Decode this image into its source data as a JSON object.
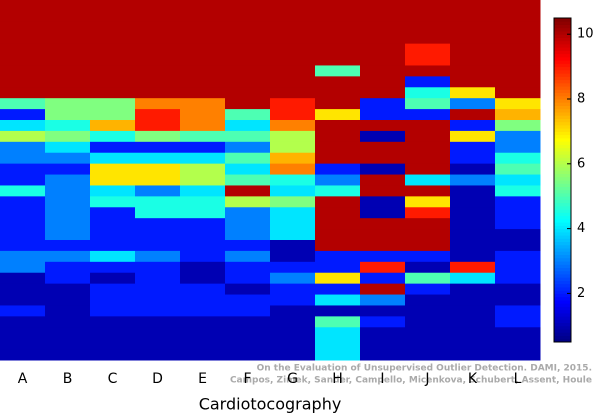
{
  "chart_data": {
    "type": "heatmap",
    "x_label": "Cardiotocography",
    "categories": [
      "A",
      "B",
      "C",
      "D",
      "E",
      "F",
      "G",
      "H",
      "I",
      "J",
      "K",
      "L"
    ],
    "colormap": "jet",
    "zlim": [
      0.5,
      10.5
    ],
    "zticks": [
      2,
      4,
      6,
      8,
      10
    ],
    "z": [
      [
        10,
        10,
        10,
        10,
        10,
        10,
        10,
        10,
        10,
        5,
        2,
        4,
        6,
        3,
        3,
        2,
        2,
        4.5,
        2,
        2,
        2,
        2,
        2,
        3,
        3,
        1,
        1,
        1,
        2,
        1,
        1,
        1,
        1
      ],
      [
        10,
        10,
        10,
        10,
        10,
        10,
        10,
        10,
        10,
        5.5,
        5.5,
        4.5,
        5.5,
        4,
        3,
        2,
        3,
        3,
        3,
        3,
        3,
        3,
        2,
        3,
        2,
        2,
        1,
        1,
        1,
        1,
        1,
        1,
        1
      ],
      [
        10,
        10,
        10,
        10,
        10,
        10,
        10,
        10,
        10,
        5.5,
        5.5,
        7.5,
        4.5,
        2,
        4,
        7,
        7,
        4,
        4.5,
        2,
        2,
        2,
        2,
        4,
        2,
        1,
        2,
        2,
        2,
        1,
        1,
        1,
        1
      ],
      [
        10,
        10,
        10,
        10,
        10,
        10,
        10,
        10,
        10,
        8,
        9,
        9,
        5.5,
        2,
        4,
        7,
        7,
        3,
        4.5,
        4.5,
        2,
        2,
        2,
        3,
        2,
        2,
        2,
        2,
        2,
        1,
        1,
        1,
        1
      ],
      [
        10,
        10,
        10,
        10,
        10,
        10,
        10,
        10,
        10,
        8,
        8,
        8,
        5,
        2,
        4,
        6,
        6,
        4,
        4.5,
        4.5,
        2,
        2,
        2,
        2,
        1,
        1,
        2,
        2,
        2,
        1,
        1,
        1,
        1
      ],
      [
        10,
        10,
        10,
        10,
        10,
        10,
        10,
        10,
        10,
        10,
        5,
        4,
        5,
        3,
        5,
        4,
        5,
        10,
        6,
        3,
        3,
        3,
        2,
        3,
        2,
        2,
        1,
        2,
        2,
        1,
        1,
        1,
        1
      ],
      [
        10,
        10,
        10,
        10,
        10,
        10,
        10,
        10,
        10,
        9,
        9,
        8,
        6,
        6,
        7.5,
        8,
        4.5,
        4,
        5.5,
        4,
        4,
        4,
        1,
        1,
        2,
        3,
        2,
        2,
        1,
        1,
        1,
        1,
        1
      ],
      [
        10,
        10,
        10,
        10,
        10,
        10,
        5,
        10,
        10,
        10,
        7,
        10,
        10,
        10,
        10,
        2,
        3,
        4.5,
        10,
        10,
        10,
        10,
        10,
        2,
        2,
        7,
        2,
        4,
        1,
        5,
        4,
        4,
        4
      ],
      [
        10,
        10,
        10,
        10,
        10,
        10,
        10,
        10,
        10,
        2,
        2,
        10,
        1,
        10,
        10,
        1,
        10,
        10,
        1,
        1,
        10,
        10,
        10,
        2,
        9,
        2,
        10,
        3,
        1,
        2,
        1,
        1,
        1
      ],
      [
        10,
        10,
        10,
        10,
        9,
        9,
        10,
        2,
        4.5,
        5,
        2,
        10,
        10,
        10,
        10,
        10,
        4,
        10,
        7,
        9,
        10,
        10,
        10,
        2,
        1,
        5,
        2,
        1,
        1,
        1,
        1,
        1,
        1
      ],
      [
        10,
        10,
        10,
        10,
        10,
        10,
        10,
        10,
        7,
        3,
        10,
        2,
        7,
        2,
        2,
        1,
        3,
        1,
        1,
        1,
        1,
        1,
        1,
        1,
        9,
        4,
        1,
        1,
        1,
        1,
        1,
        1,
        1
      ],
      [
        10,
        10,
        10,
        10,
        10,
        10,
        10,
        10,
        10,
        7,
        7.5,
        5.5,
        3,
        3,
        4.5,
        5,
        4,
        4.5,
        2,
        2,
        2,
        1,
        1,
        2,
        2,
        2,
        1,
        1,
        2,
        2,
        1,
        1,
        1
      ]
    ]
  },
  "footnote": [
    "On the Evaluation of Unsupervised Outlier Detection. DAMI, 2015.",
    "Campos, Zimek, Sander, Campello, Micenkova, Schubert, Assent, Houle"
  ]
}
